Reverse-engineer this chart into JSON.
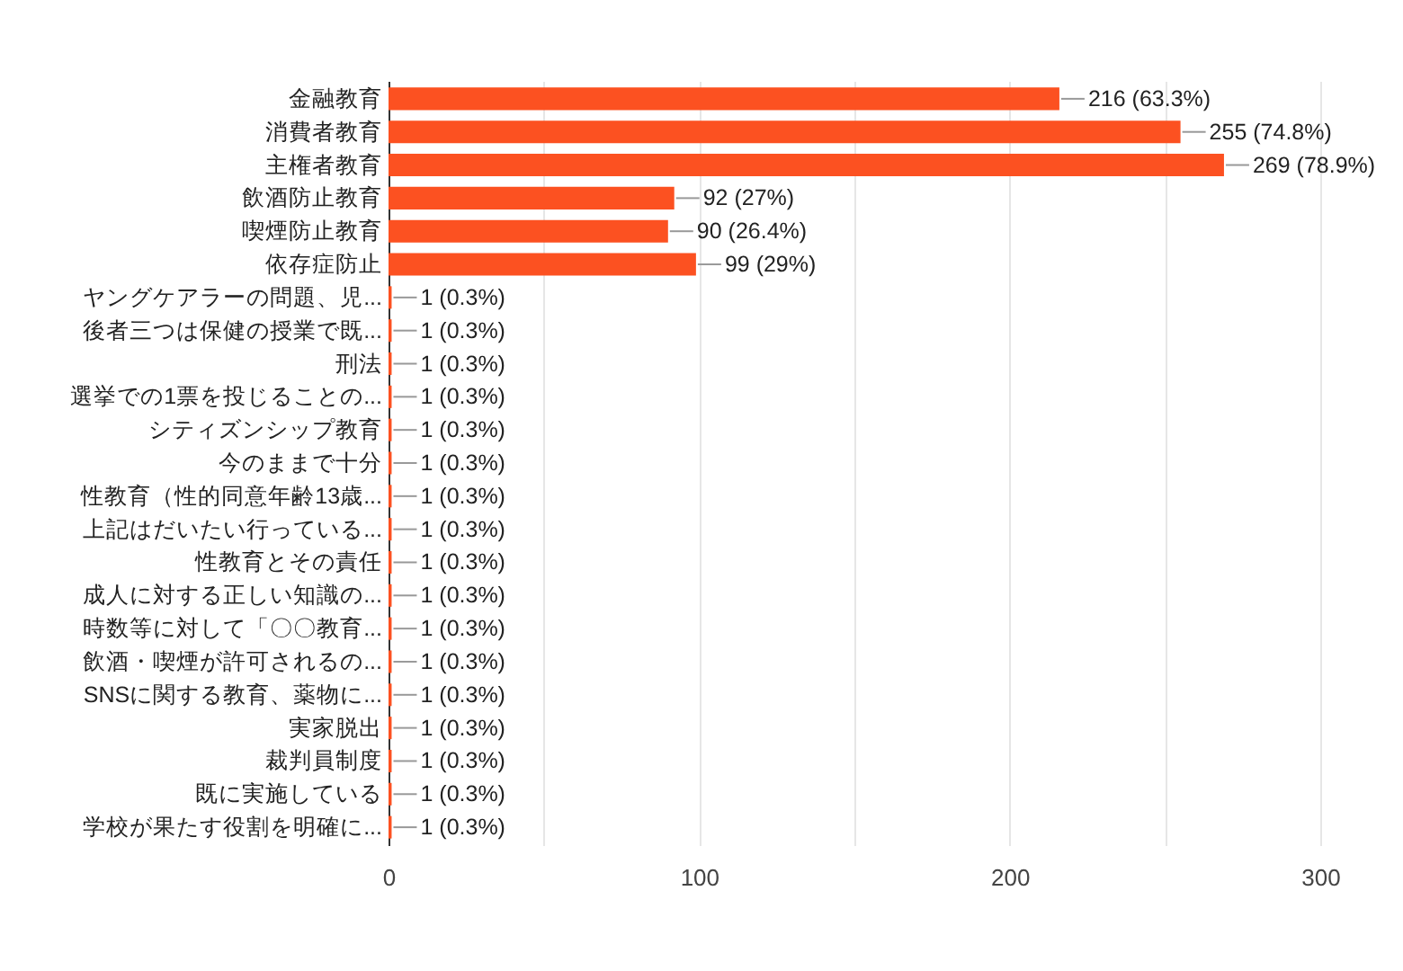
{
  "chart_data": {
    "type": "bar",
    "orientation": "horizontal",
    "categories": [
      "金融教育",
      "消費者教育",
      "主権者教育",
      "飲酒防止教育",
      "喫煙防止教育",
      "依存症防止",
      "ヤングケアラーの問題、児...",
      "後者三つは保健の授業で既...",
      "刑法",
      "選挙での1票を投じることの...",
      "シティズンシップ教育",
      "今のままで十分",
      "性教育（性的同意年齢13歳...",
      "上記はだいたい行っている...",
      "性教育とその責任",
      "成人に対する正しい知識の...",
      "時数等に対して「〇〇教育...",
      "飲酒・喫煙が許可されるの...",
      "SNSに関する教育、薬物に...",
      "実家脱出",
      "裁判員制度",
      "既に実施している",
      "学校が果たす役割を明確に..."
    ],
    "values": [
      216,
      255,
      269,
      92,
      90,
      99,
      1,
      1,
      1,
      1,
      1,
      1,
      1,
      1,
      1,
      1,
      1,
      1,
      1,
      1,
      1,
      1,
      1
    ],
    "value_labels": [
      "216 (63.3%)",
      "255 (74.8%)",
      "269 (78.9%)",
      "92 (27%)",
      "90 (26.4%)",
      "99 (29%)",
      "1 (0.3%)",
      "1 (0.3%)",
      "1 (0.3%)",
      "1 (0.3%)",
      "1 (0.3%)",
      "1 (0.3%)",
      "1 (0.3%)",
      "1 (0.3%)",
      "1 (0.3%)",
      "1 (0.3%)",
      "1 (0.3%)",
      "1 (0.3%)",
      "1 (0.3%)",
      "1 (0.3%)",
      "1 (0.3%)",
      "1 (0.3%)",
      "1 (0.3%)"
    ],
    "color": "#fc5121",
    "xlim": [
      0,
      300
    ],
    "xticks": [
      0,
      {
        "value": 50,
        "label": null
      },
      100,
      {
        "value": 150,
        "label": null
      },
      200,
      {
        "value": 250,
        "label": null
      },
      300
    ],
    "grid": true
  }
}
